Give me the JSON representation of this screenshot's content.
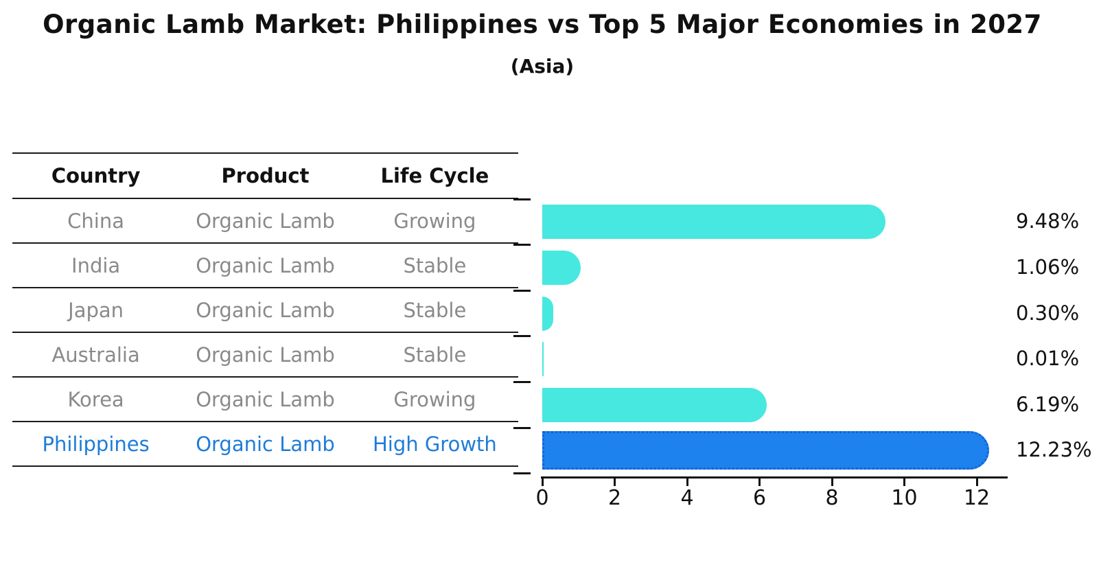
{
  "header": {
    "title": "Organic Lamb Market: Philippines vs Top 5 Major Economies in 2027",
    "subtitle": "(Asia)"
  },
  "table": {
    "columns": [
      "Country",
      "Product",
      "Life Cycle"
    ],
    "rows": [
      {
        "country": "China",
        "product": "Organic Lamb",
        "life_cycle": "Growing",
        "highlight": false
      },
      {
        "country": "India",
        "product": "Organic Lamb",
        "life_cycle": "Stable",
        "highlight": false
      },
      {
        "country": "Japan",
        "product": "Organic Lamb",
        "life_cycle": "Stable",
        "highlight": false
      },
      {
        "country": "Australia",
        "product": "Organic Lamb",
        "life_cycle": "Stable",
        "highlight": false
      },
      {
        "country": "Korea",
        "product": "Organic Lamb",
        "life_cycle": "Growing",
        "highlight": false
      },
      {
        "country": "Philippines",
        "product": "Organic Lamb",
        "life_cycle": "High Growth",
        "highlight": true
      }
    ]
  },
  "chart_data": {
    "type": "bar",
    "orientation": "horizontal",
    "title": "Organic Lamb Market: Philippines vs Top 5 Major Economies in 2027",
    "subtitle": "(Asia)",
    "categories": [
      "China",
      "India",
      "Japan",
      "Australia",
      "Korea",
      "Philippines"
    ],
    "values": [
      9.48,
      1.06,
      0.3,
      0.01,
      6.19,
      12.23
    ],
    "value_labels": [
      "9.48%",
      "1.06%",
      "0.30%",
      "0.01%",
      "6.19%",
      "12.23%"
    ],
    "x_ticks": [
      "0",
      "2",
      "4",
      "6",
      "8",
      "10",
      "12"
    ],
    "x_tick_values": [
      0,
      2,
      4,
      6,
      8,
      10,
      12
    ],
    "xlim": [
      0,
      12.9
    ],
    "xlabel": "",
    "ylabel": "",
    "grid": false,
    "legend_position": "none",
    "highlight_index": 5
  },
  "colors": {
    "bar_default": "#47E8DF",
    "bar_highlight": "#1E82EE",
    "bar_highlight_border": "#1263D4",
    "highlight_text": "#1E7CD8",
    "muted_text": "#8a8a8a",
    "heading_text": "#111111",
    "rule_line": "#1a1a1a",
    "background": "#ffffff"
  }
}
